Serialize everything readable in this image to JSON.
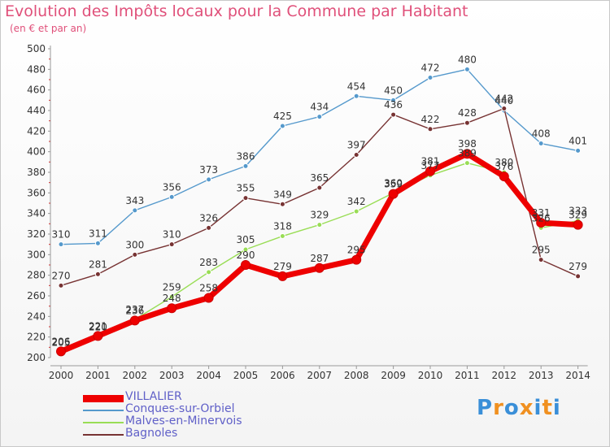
{
  "header": {
    "title": "Evolution des Impôts locaux pour la Commune par Habitant",
    "subtitle": "(en € et par an)"
  },
  "logo": {
    "text": "Proxiti"
  },
  "colors": {
    "VILLALIER": "#ee0000",
    "Conques-sur-Orbiel": "#5599cc",
    "Malves-en-Minervois": "#99dd55",
    "Bagnoles": "#773333",
    "title": "#e0507a",
    "legend_text": "#6060c8"
  },
  "chart_data": {
    "type": "line",
    "title": "Evolution des Impôts locaux pour la Commune par Habitant",
    "subtitle": "(en € et par an)",
    "xlabel": "",
    "ylabel": "",
    "ylim": [
      200,
      500
    ],
    "ytick_step": 20,
    "grid": false,
    "legend": "bottom-left",
    "x": [
      "2000",
      "2001",
      "2002",
      "2003",
      "2004",
      "2005",
      "2006",
      "2007",
      "2008",
      "2009",
      "2010",
      "2011",
      "2012",
      "2013",
      "2014"
    ],
    "series": [
      {
        "name": "VILLALIER",
        "values": [
          206,
          221,
          236,
          248,
          258,
          290,
          279,
          287,
          295,
          359,
          381,
          398,
          376,
          331,
          329
        ]
      },
      {
        "name": "Conques-sur-Orbiel",
        "values": [
          310,
          311,
          343,
          356,
          373,
          386,
          425,
          434,
          454,
          450,
          472,
          480,
          440,
          408,
          401
        ]
      },
      {
        "name": "Malves-en-Minervois",
        "values": [
          205,
          220,
          237,
          259,
          283,
          305,
          318,
          329,
          342,
          360,
          377,
          389,
          380,
          326,
          333
        ]
      },
      {
        "name": "Bagnoles",
        "values": [
          270,
          281,
          300,
          310,
          326,
          355,
          349,
          365,
          397,
          436,
          422,
          428,
          442,
          295,
          279
        ]
      }
    ],
    "point_labels": {
      "VILLALIER": [
        "206",
        "221",
        "236",
        "248",
        "258",
        "290",
        "279",
        "287",
        "295",
        "359",
        "381",
        "398",
        "376",
        "331",
        "329"
      ],
      "Conques-sur-Orbiel": [
        "310",
        "311",
        "343",
        "356",
        "373",
        "386",
        "425",
        "434",
        "454",
        "450",
        "472",
        "480",
        "440",
        "408",
        "401"
      ],
      "Malves-en-Minervois": [
        "205",
        "220",
        "237",
        "259",
        "283",
        "305",
        "318",
        "329",
        "342",
        "360",
        "377",
        "389",
        "380",
        "326",
        "333"
      ],
      "Bagnoles": [
        "270",
        "281",
        "300",
        "310",
        "326",
        "355",
        "349",
        "365",
        "397",
        "436",
        "422",
        "428",
        "442",
        "295",
        "279"
      ]
    }
  }
}
